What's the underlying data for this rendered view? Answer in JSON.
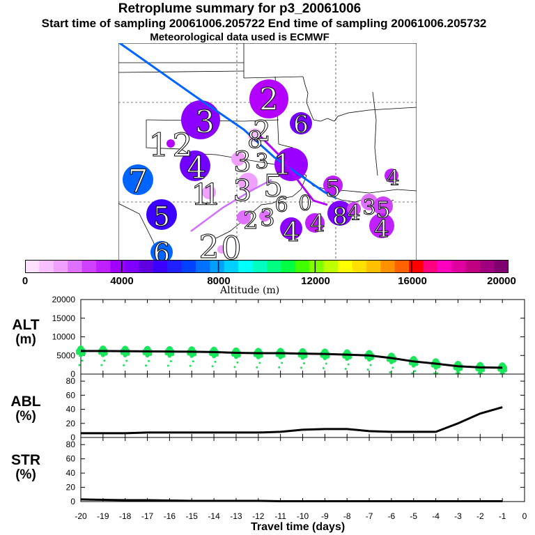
{
  "header": {
    "title": "Retroplume summary for p3_20061006",
    "sampling": "Start time of sampling 20061006.205722     End time of sampling 20061006.205732",
    "met": "Meteorological data used is ECMWF"
  },
  "map": {
    "labels": [
      "2",
      "3",
      "6",
      "1",
      "2",
      "4",
      "7",
      "2",
      "1",
      "3",
      "1",
      "1",
      "3",
      "5",
      "4",
      "5",
      "4",
      "5",
      "4",
      "8",
      "5",
      "3",
      "4",
      "4",
      "0",
      "6",
      "2",
      "3",
      "8",
      "2",
      "3",
      "6",
      "0"
    ]
  },
  "colorbar": {
    "ticks": [
      "0",
      "4000",
      "8000",
      "12000",
      "16000",
      "20000"
    ],
    "label": "Altitude (m)",
    "colors": [
      "#ffe0ff",
      "#f8c0ff",
      "#f0a0ff",
      "#e070ff",
      "#d040ff",
      "#c020ff",
      "#a000ff",
      "#8000ff",
      "#6000e0",
      "#3c00ff",
      "#2020ff",
      "#0040ff",
      "#0070ff",
      "#00a0ff",
      "#00d0ff",
      "#00ffff",
      "#00ffc0",
      "#00ff80",
      "#00ff40",
      "#40ff00",
      "#80ff00",
      "#c0ff00",
      "#ffff00",
      "#ffe000",
      "#ffc000",
      "#ff9000",
      "#ff6000",
      "#ff0000",
      "#ff0080",
      "#ff00c0",
      "#e000a0",
      "#c00080",
      "#a00080",
      "#800070"
    ]
  },
  "panels": {
    "alt": {
      "label1": "ALT",
      "label2": "(m)",
      "yticks": [
        "20000",
        "15000",
        "10000",
        "5000",
        "0"
      ]
    },
    "abl": {
      "label1": "ABL",
      "label2": "(%)",
      "yticks": [
        "80",
        "60",
        "40",
        "20",
        "0"
      ]
    },
    "str": {
      "label1": "STR",
      "label2": "(%)",
      "yticks": [
        "80",
        "60",
        "40",
        "20",
        "0"
      ]
    }
  },
  "xaxis": {
    "ticks": [
      "-20",
      "-19",
      "-18",
      "-17",
      "-16",
      "-15",
      "-14",
      "-13",
      "-12",
      "-11",
      "-10",
      "-9",
      "-8",
      "-7",
      "-6",
      "-5",
      "-4",
      "-3",
      "-2",
      "-1",
      "0"
    ],
    "title": "Travel time (days)"
  },
  "chart_data": [
    {
      "type": "line",
      "name": "ALT",
      "ylabel": "ALT (m)",
      "xlabel": "Travel time (days)",
      "xlim": [
        -20,
        0
      ],
      "ylim": [
        0,
        20000
      ],
      "x": [
        -20,
        -19,
        -18,
        -17,
        -16,
        -15,
        -14,
        -13,
        -12,
        -11,
        -10,
        -9,
        -8,
        -7,
        -6,
        -5,
        -4,
        -3,
        -2,
        -1
      ],
      "values": [
        6200,
        6200,
        6150,
        6100,
        6050,
        6000,
        5900,
        5700,
        5600,
        5600,
        5500,
        5400,
        5200,
        5000,
        4300,
        3400,
        2800,
        2100,
        1800,
        1700
      ],
      "scatter_color": "#19e65a"
    },
    {
      "type": "line",
      "name": "ABL",
      "ylabel": "ABL (%)",
      "xlim": [
        -20,
        0
      ],
      "ylim": [
        0,
        90
      ],
      "x": [
        -20,
        -19,
        -18,
        -17,
        -16,
        -15,
        -14,
        -13,
        -12,
        -11,
        -10,
        -9,
        -8,
        -7,
        -6,
        -5,
        -4,
        -3,
        -2,
        -1
      ],
      "values": [
        6,
        6,
        6,
        7,
        7,
        7,
        7,
        7,
        7,
        8,
        11,
        12,
        12,
        9,
        8,
        8,
        8,
        20,
        34,
        43
      ]
    },
    {
      "type": "line",
      "name": "STR",
      "ylabel": "STR (%)",
      "xlim": [
        -20,
        0
      ],
      "ylim": [
        0,
        90
      ],
      "x": [
        -20,
        -19,
        -18,
        -17,
        -16,
        -15,
        -14,
        -13,
        -12,
        -11,
        -10,
        -9,
        -8,
        -7,
        -6,
        -5,
        -4,
        -3,
        -2,
        -1
      ],
      "values": [
        3,
        2.5,
        2,
        2,
        1.5,
        1,
        1,
        1,
        1,
        0.5,
        0.5,
        0.5,
        0.5,
        0.5,
        0.5,
        0.5,
        0.5,
        0.5,
        0.5,
        0.5
      ]
    }
  ]
}
